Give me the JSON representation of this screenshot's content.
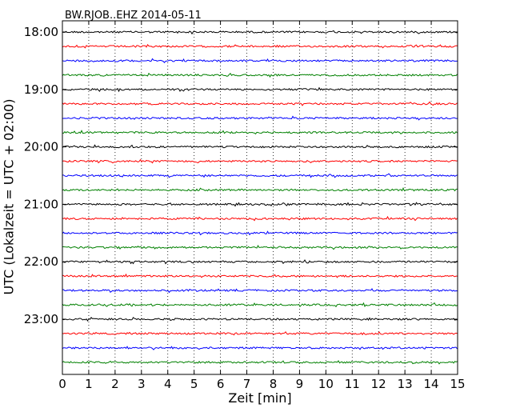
{
  "chart_data": {
    "type": "line",
    "title": "BW.RJOB..EHZ 2014-05-11",
    "xlabel": "Zeit  [min]",
    "ylabel": "UTC (Lokalzeit = UTC + 02:00)",
    "xlim": [
      0,
      15
    ],
    "x_ticks": [
      "0",
      "1",
      "2",
      "3",
      "4",
      "5",
      "6",
      "7",
      "8",
      "9",
      "10",
      "11",
      "12",
      "13",
      "14",
      "15"
    ],
    "y_ticks": [
      "18:00",
      "19:00",
      "20:00",
      "21:00",
      "22:00",
      "23:00"
    ],
    "grid": "vertical dotted",
    "trace_interval_min": 15,
    "start": "18:00",
    "end": "23:45",
    "color_cycle": [
      "#000000",
      "#ff0000",
      "#0000ff",
      "#008000"
    ],
    "series": [
      {
        "start": "18:00",
        "color": "#000000"
      },
      {
        "start": "18:15",
        "color": "#ff0000"
      },
      {
        "start": "18:30",
        "color": "#0000ff"
      },
      {
        "start": "18:45",
        "color": "#008000"
      },
      {
        "start": "19:00",
        "color": "#000000"
      },
      {
        "start": "19:15",
        "color": "#ff0000"
      },
      {
        "start": "19:30",
        "color": "#0000ff"
      },
      {
        "start": "19:45",
        "color": "#008000"
      },
      {
        "start": "20:00",
        "color": "#000000"
      },
      {
        "start": "20:15",
        "color": "#ff0000"
      },
      {
        "start": "20:30",
        "color": "#0000ff"
      },
      {
        "start": "20:45",
        "color": "#008000"
      },
      {
        "start": "21:00",
        "color": "#000000"
      },
      {
        "start": "21:15",
        "color": "#ff0000"
      },
      {
        "start": "21:30",
        "color": "#0000ff"
      },
      {
        "start": "21:45",
        "color": "#008000"
      },
      {
        "start": "22:00",
        "color": "#000000"
      },
      {
        "start": "22:15",
        "color": "#ff0000"
      },
      {
        "start": "22:30",
        "color": "#0000ff"
      },
      {
        "start": "22:45",
        "color": "#008000"
      },
      {
        "start": "23:00",
        "color": "#000000"
      },
      {
        "start": "23:15",
        "color": "#ff0000"
      },
      {
        "start": "23:30",
        "color": "#0000ff"
      },
      {
        "start": "23:45",
        "color": "#008000"
      }
    ]
  }
}
